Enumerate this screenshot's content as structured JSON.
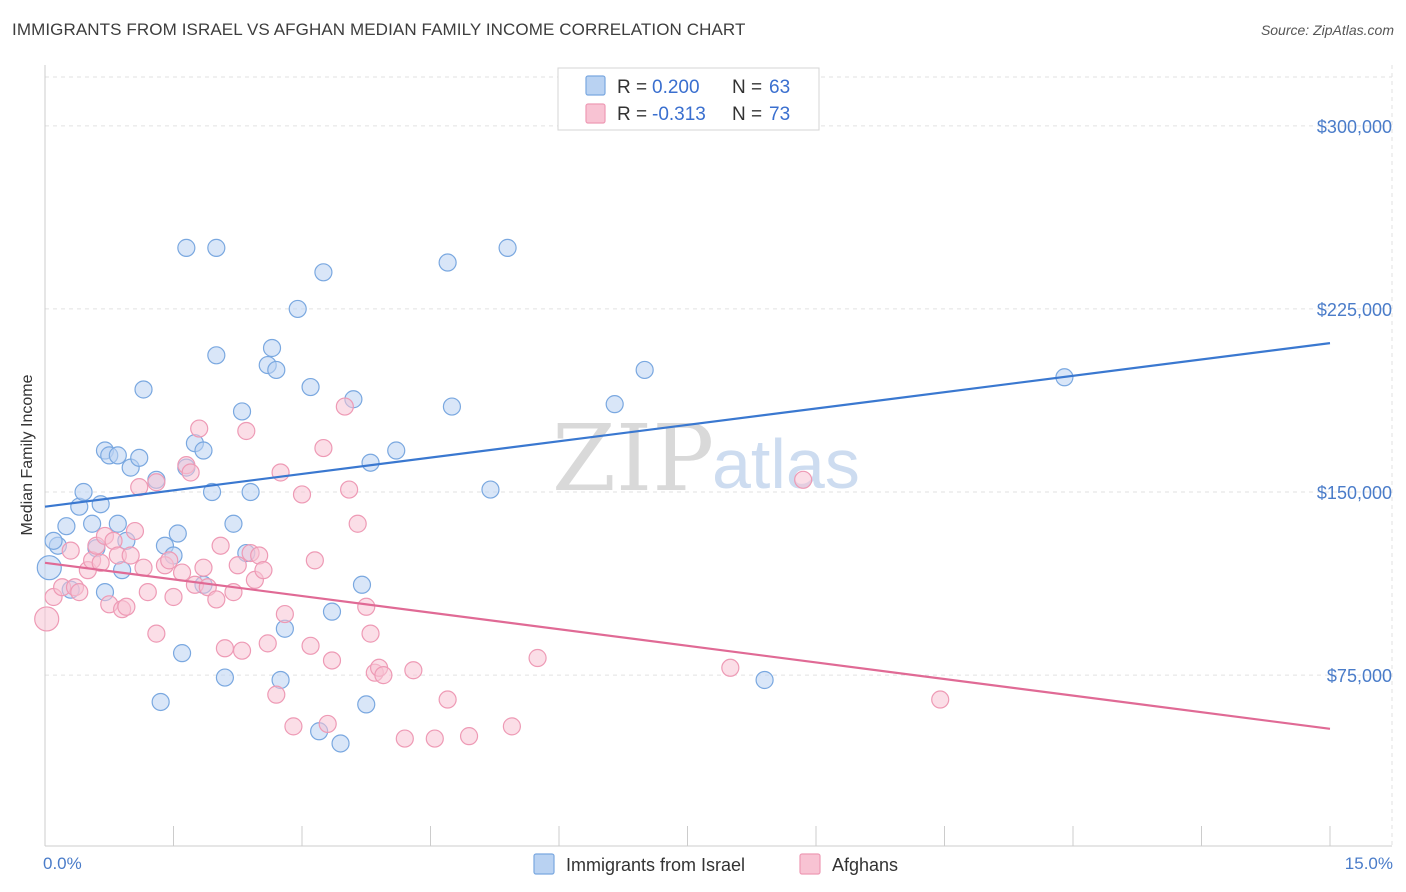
{
  "title": "IMMIGRANTS FROM ISRAEL VS AFGHAN MEDIAN FAMILY INCOME CORRELATION CHART",
  "source": "Source: ZipAtlas.com",
  "watermark": {
    "zip": "ZIP",
    "atlas": "atlas"
  },
  "legend": {
    "r_label": "R =",
    "n_label": "N =",
    "israel": {
      "r": "0.200",
      "n": "63"
    },
    "afghans": {
      "r": "-0.313",
      "n": "73"
    }
  },
  "colors": {
    "israel_fill": "#b9d2f2",
    "israel_stroke": "#7aa8e0",
    "israel_line": "#3a78d0",
    "afghan_fill": "#f8c3d3",
    "afghan_stroke": "#ee9ab5",
    "afghan_line": "#e06a95",
    "tick_text": "#4a7cc9"
  },
  "chart_data": {
    "type": "scatter",
    "title": "IMMIGRANTS FROM ISRAEL VS AFGHAN MEDIAN FAMILY INCOME CORRELATION CHART",
    "xlabel": "",
    "ylabel": "Median Family Income",
    "xlim": [
      0,
      15
    ],
    "ylim": [
      5000,
      320000
    ],
    "x_tick_labels": [
      "0.0%",
      "15.0%"
    ],
    "y_ticks": [
      75000,
      150000,
      225000,
      300000
    ],
    "y_tick_labels": [
      "$75,000",
      "$150,000",
      "$225,000",
      "$300,000"
    ],
    "grid": true,
    "legend_placement": "top-center",
    "series": [
      {
        "name": "Immigrants from Israel",
        "r": 0.2,
        "n": 63,
        "trend": [
          [
            0,
            144000
          ],
          [
            15,
            211000
          ]
        ],
        "points": [
          [
            0.05,
            119000
          ],
          [
            0.15,
            128000
          ],
          [
            0.25,
            136000
          ],
          [
            0.3,
            110000
          ],
          [
            0.4,
            144000
          ],
          [
            0.45,
            150000
          ],
          [
            0.55,
            137000
          ],
          [
            0.6,
            127000
          ],
          [
            0.65,
            145000
          ],
          [
            0.7,
            109000
          ],
          [
            0.7,
            167000
          ],
          [
            0.75,
            165000
          ],
          [
            0.85,
            137000
          ],
          [
            0.9,
            118000
          ],
          [
            0.95,
            130000
          ],
          [
            1.0,
            160000
          ],
          [
            1.1,
            164000
          ],
          [
            1.15,
            192000
          ],
          [
            1.3,
            155000
          ],
          [
            1.35,
            64000
          ],
          [
            1.4,
            128000
          ],
          [
            1.5,
            124000
          ],
          [
            1.55,
            133000
          ],
          [
            1.6,
            84000
          ],
          [
            1.65,
            160000
          ],
          [
            1.65,
            250000
          ],
          [
            1.75,
            170000
          ],
          [
            1.85,
            112000
          ],
          [
            1.85,
            167000
          ],
          [
            1.95,
            150000
          ],
          [
            2.0,
            206000
          ],
          [
            2.0,
            250000
          ],
          [
            2.1,
            74000
          ],
          [
            2.2,
            137000
          ],
          [
            2.3,
            183000
          ],
          [
            2.35,
            125000
          ],
          [
            2.4,
            150000
          ],
          [
            2.6,
            202000
          ],
          [
            2.65,
            209000
          ],
          [
            2.7,
            200000
          ],
          [
            2.75,
            73000
          ],
          [
            2.8,
            94000
          ],
          [
            2.95,
            225000
          ],
          [
            3.1,
            193000
          ],
          [
            3.2,
            52000
          ],
          [
            3.25,
            240000
          ],
          [
            3.35,
            101000
          ],
          [
            3.45,
            47000
          ],
          [
            3.6,
            188000
          ],
          [
            3.7,
            112000
          ],
          [
            3.75,
            63000
          ],
          [
            3.8,
            162000
          ],
          [
            4.1,
            167000
          ],
          [
            4.7,
            244000
          ],
          [
            4.75,
            185000
          ],
          [
            5.2,
            151000
          ],
          [
            5.4,
            250000
          ],
          [
            6.65,
            186000
          ],
          [
            7.0,
            200000
          ],
          [
            8.4,
            73000
          ],
          [
            11.9,
            197000
          ],
          [
            0.1,
            130000
          ],
          [
            0.85,
            165000
          ]
        ]
      },
      {
        "name": "Afghans",
        "r": -0.313,
        "n": 73,
        "trend": [
          [
            0,
            121000
          ],
          [
            15,
            53000
          ]
        ],
        "points": [
          [
            0.02,
            98000
          ],
          [
            0.1,
            107000
          ],
          [
            0.2,
            111000
          ],
          [
            0.3,
            126000
          ],
          [
            0.35,
            111000
          ],
          [
            0.4,
            109000
          ],
          [
            0.5,
            118000
          ],
          [
            0.55,
            122000
          ],
          [
            0.6,
            128000
          ],
          [
            0.65,
            121000
          ],
          [
            0.7,
            132000
          ],
          [
            0.75,
            104000
          ],
          [
            0.8,
            130000
          ],
          [
            0.85,
            124000
          ],
          [
            0.9,
            102000
          ],
          [
            0.95,
            103000
          ],
          [
            1.0,
            124000
          ],
          [
            1.05,
            134000
          ],
          [
            1.1,
            152000
          ],
          [
            1.15,
            119000
          ],
          [
            1.2,
            109000
          ],
          [
            1.3,
            154000
          ],
          [
            1.3,
            92000
          ],
          [
            1.4,
            120000
          ],
          [
            1.45,
            122000
          ],
          [
            1.5,
            107000
          ],
          [
            1.6,
            117000
          ],
          [
            1.65,
            161000
          ],
          [
            1.7,
            158000
          ],
          [
            1.75,
            112000
          ],
          [
            1.8,
            176000
          ],
          [
            1.85,
            119000
          ],
          [
            1.9,
            111000
          ],
          [
            2.0,
            106000
          ],
          [
            2.05,
            128000
          ],
          [
            2.1,
            86000
          ],
          [
            2.2,
            109000
          ],
          [
            2.25,
            120000
          ],
          [
            2.3,
            85000
          ],
          [
            2.35,
            175000
          ],
          [
            2.4,
            125000
          ],
          [
            2.45,
            114000
          ],
          [
            2.5,
            124000
          ],
          [
            2.55,
            118000
          ],
          [
            2.6,
            88000
          ],
          [
            2.7,
            67000
          ],
          [
            2.75,
            158000
          ],
          [
            2.8,
            100000
          ],
          [
            2.9,
            54000
          ],
          [
            3.0,
            149000
          ],
          [
            3.1,
            87000
          ],
          [
            3.15,
            122000
          ],
          [
            3.25,
            168000
          ],
          [
            3.3,
            55000
          ],
          [
            3.35,
            81000
          ],
          [
            3.5,
            185000
          ],
          [
            3.55,
            151000
          ],
          [
            3.65,
            137000
          ],
          [
            3.75,
            103000
          ],
          [
            3.8,
            92000
          ],
          [
            3.85,
            76000
          ],
          [
            3.9,
            78000
          ],
          [
            3.95,
            75000
          ],
          [
            4.2,
            49000
          ],
          [
            4.3,
            77000
          ],
          [
            4.55,
            49000
          ],
          [
            4.7,
            65000
          ],
          [
            4.95,
            50000
          ],
          [
            5.45,
            54000
          ],
          [
            5.75,
            82000
          ],
          [
            8.0,
            78000
          ],
          [
            8.85,
            155000
          ],
          [
            10.45,
            65000
          ]
        ]
      }
    ]
  },
  "bottom_legend": {
    "israel": "Immigrants from Israel",
    "afghans": "Afghans"
  }
}
